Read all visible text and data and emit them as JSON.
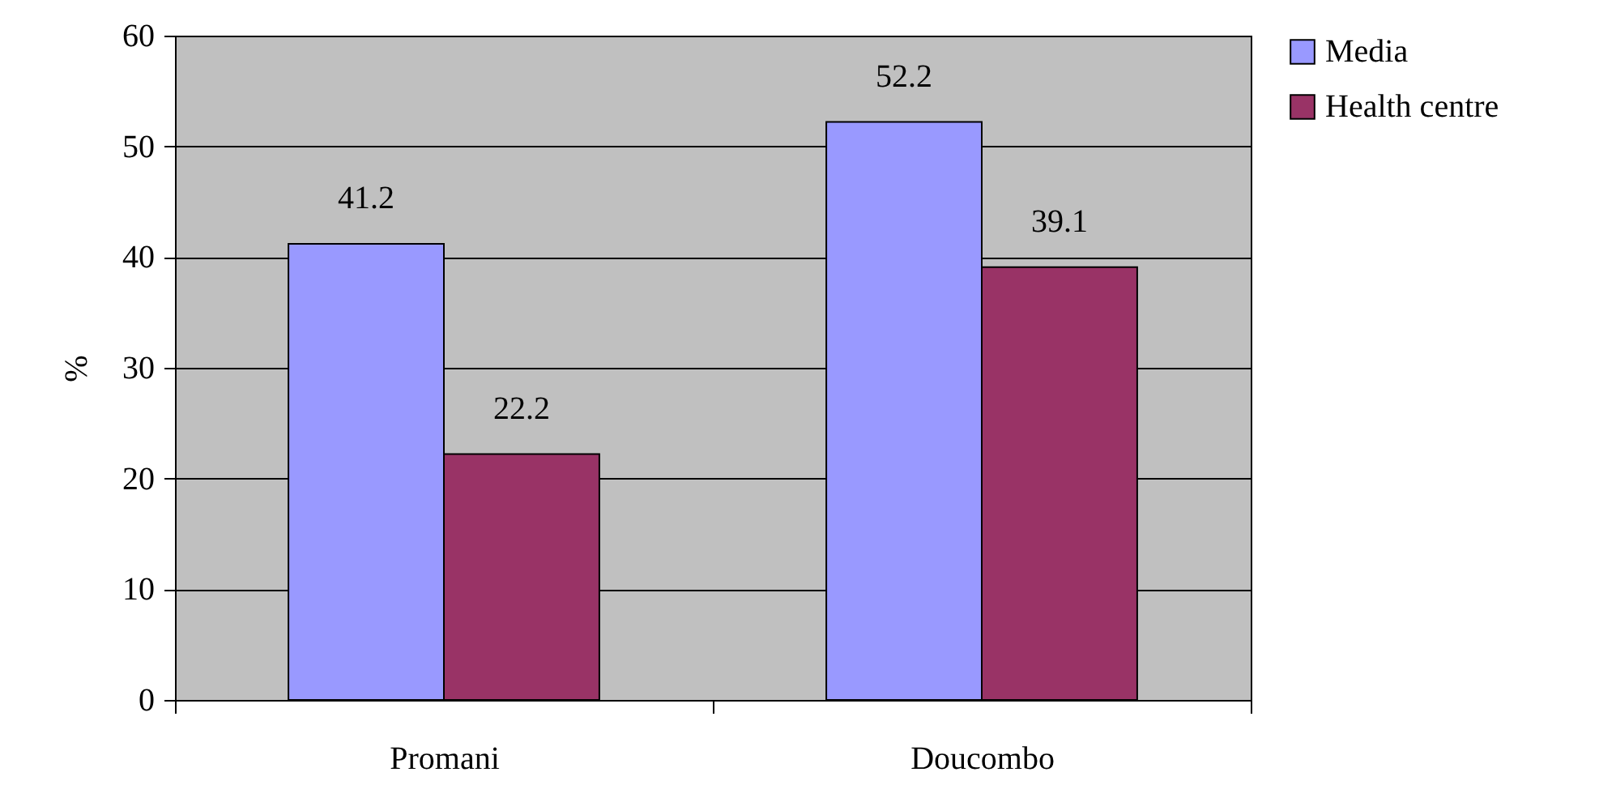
{
  "chart_data": {
    "type": "bar",
    "ylabel": "%",
    "categories": [
      "Promani",
      "Doucombo"
    ],
    "series": [
      {
        "name": "Media",
        "color": "#9999ff",
        "values": [
          41.2,
          52.2
        ]
      },
      {
        "name": "Health centre",
        "color": "#993366",
        "values": [
          22.2,
          39.1
        ]
      }
    ],
    "ylim": [
      0,
      60
    ],
    "yticks": [
      0,
      10,
      20,
      30,
      40,
      50,
      60
    ],
    "grid": "y",
    "legend": "right",
    "data_labels": true
  }
}
